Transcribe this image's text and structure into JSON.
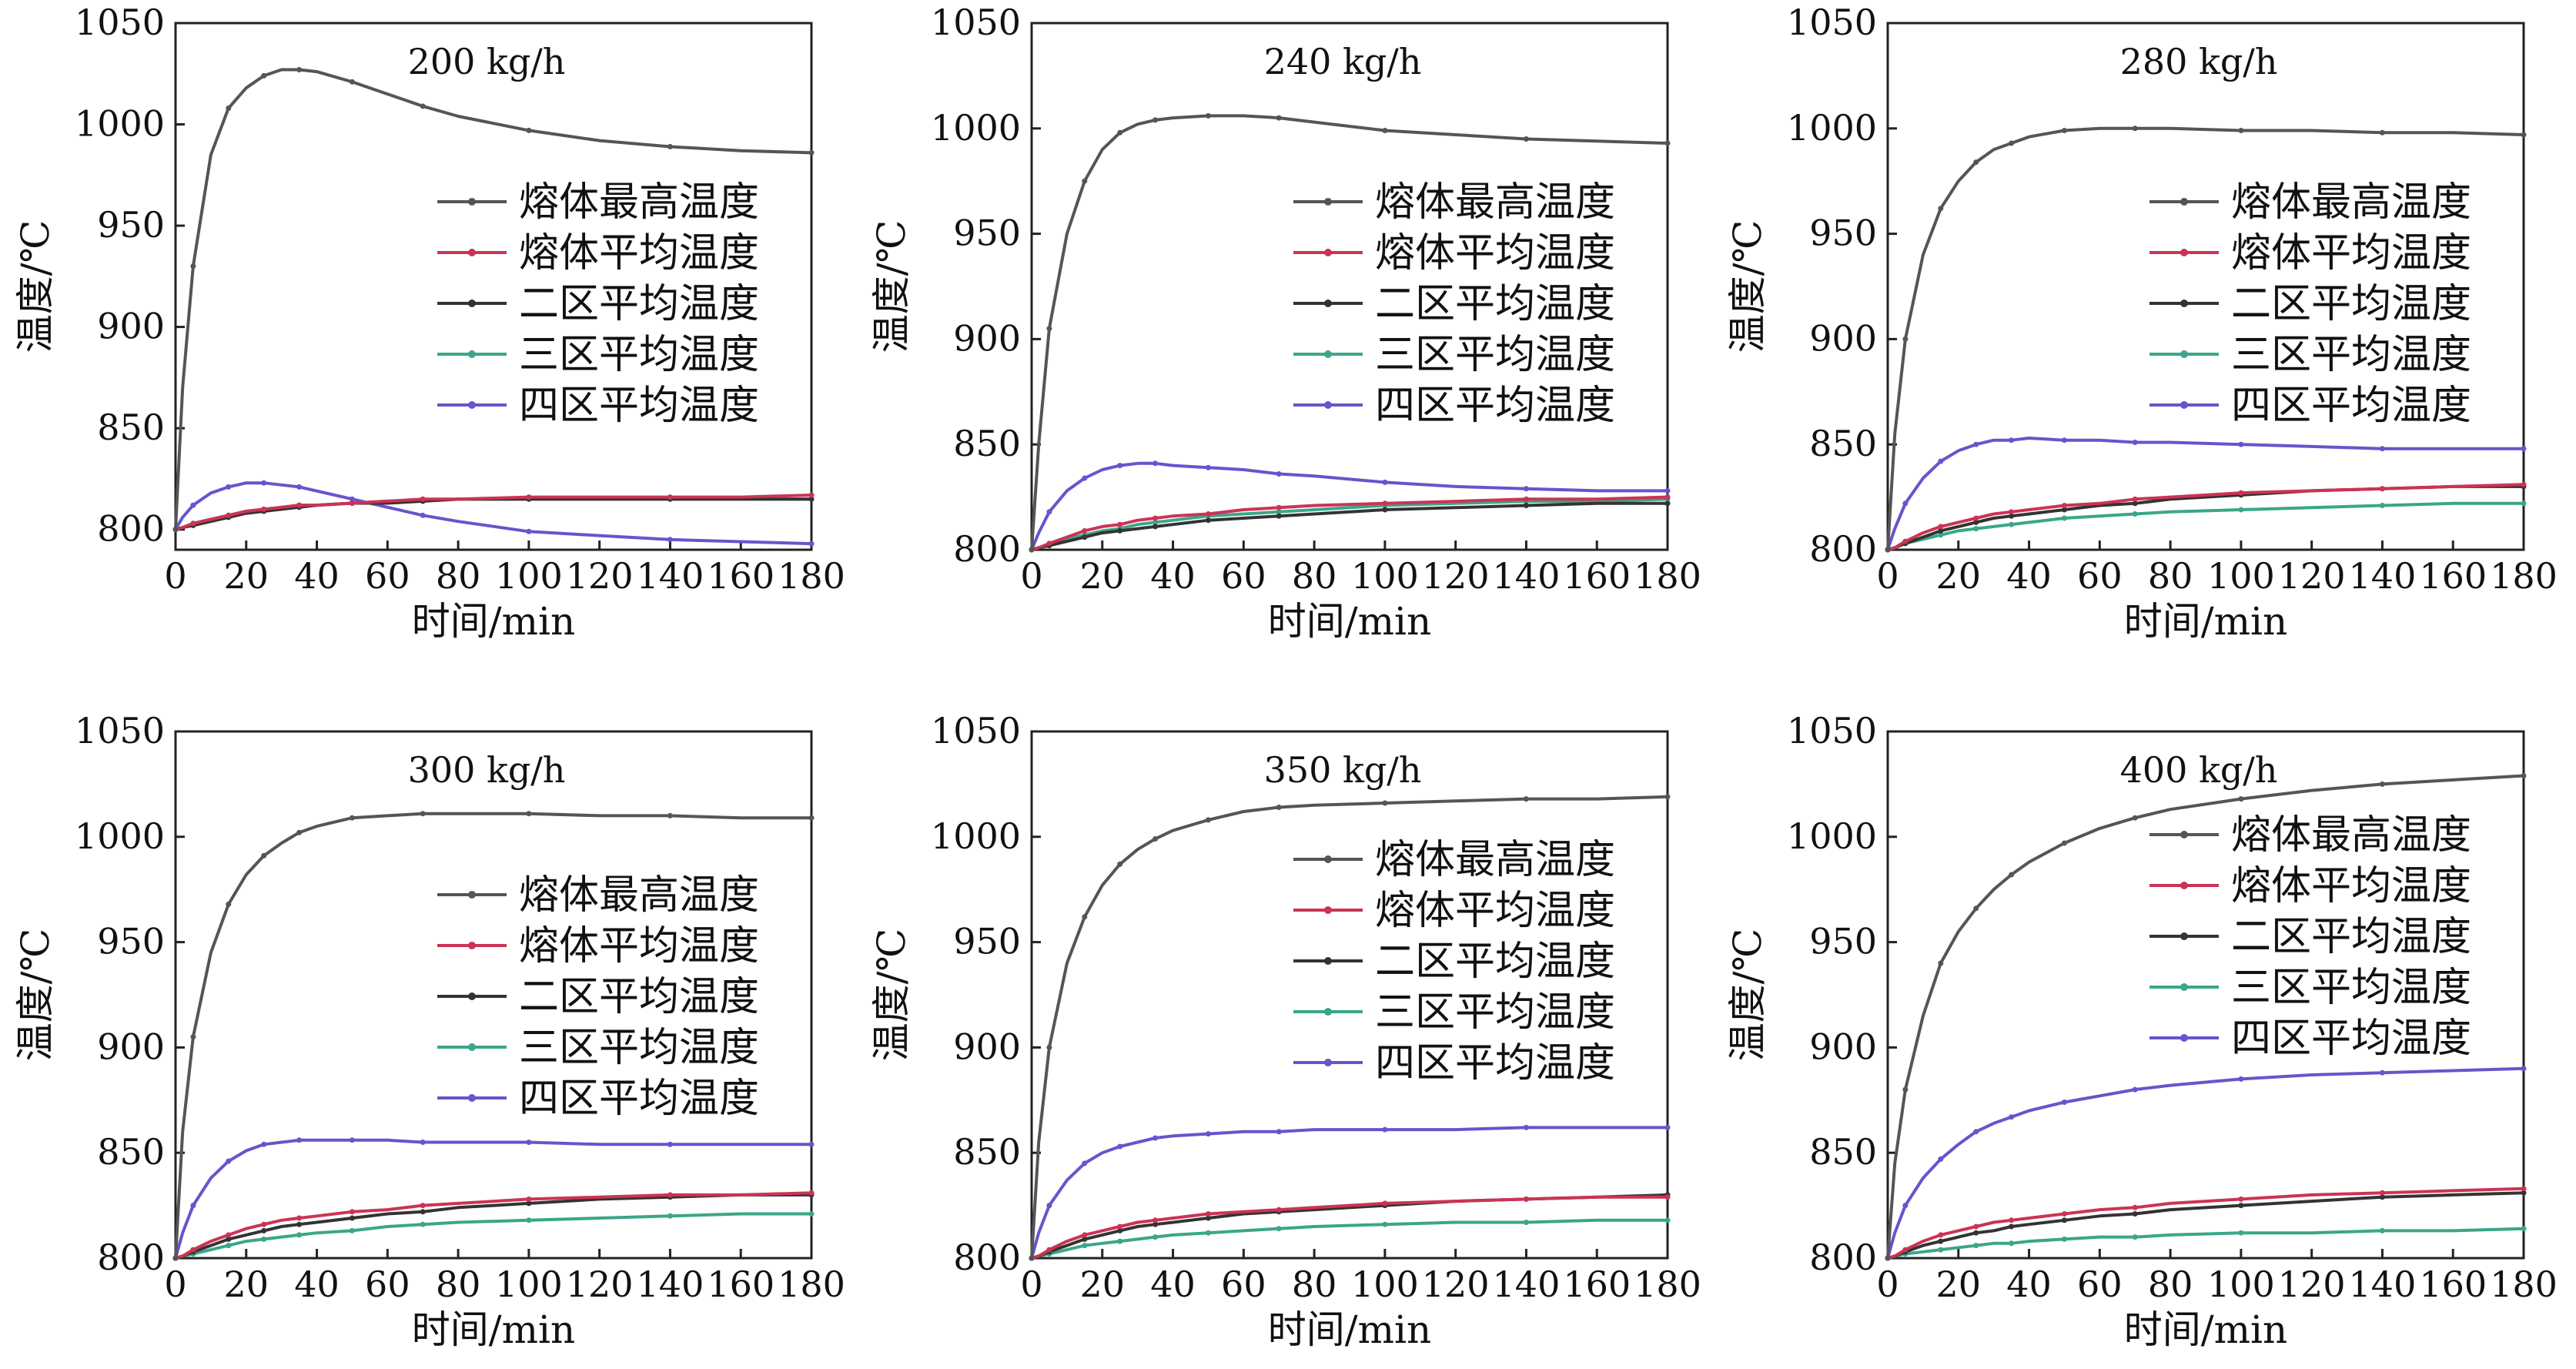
{
  "chart_data": [
    {
      "type": "line",
      "title": "200 kg/h",
      "xlabel": "时间/min",
      "ylabel": "温度/℃",
      "xlim": [
        0,
        180
      ],
      "ylim": [
        790,
        1050
      ],
      "xticks": [
        0,
        20,
        40,
        60,
        80,
        100,
        120,
        140,
        160,
        180
      ],
      "yticks": [
        800,
        850,
        900,
        950,
        1000,
        1050
      ],
      "legend_position": "right",
      "x": [
        0,
        2,
        5,
        10,
        15,
        20,
        25,
        30,
        35,
        40,
        50,
        60,
        70,
        80,
        100,
        120,
        140,
        160,
        180
      ],
      "series": [
        {
          "name": "熔体最高温度",
          "color": "#555555",
          "values": [
            800,
            870,
            930,
            985,
            1008,
            1018,
            1024,
            1027,
            1027,
            1026,
            1021,
            1015,
            1009,
            1004,
            997,
            992,
            989,
            987,
            986
          ]
        },
        {
          "name": "熔体平均温度",
          "color": "#cc3355",
          "values": [
            800,
            801,
            803,
            805,
            807,
            809,
            810,
            811,
            812,
            812,
            813,
            814,
            815,
            815,
            816,
            816,
            816,
            816,
            817
          ]
        },
        {
          "name": "二区平均温度",
          "color": "#333333",
          "values": [
            800,
            801,
            802,
            804,
            806,
            808,
            809,
            810,
            811,
            812,
            813,
            813,
            814,
            815,
            815,
            815,
            815,
            815,
            815
          ]
        },
        {
          "name": "三区平均温度",
          "color": "#3aa68a",
          "values": [
            800,
            801,
            803,
            805,
            807,
            809,
            810,
            811,
            812,
            812,
            813,
            814,
            814,
            815,
            815,
            815,
            815,
            815,
            815
          ]
        },
        {
          "name": "四区平均温度",
          "color": "#6655cc",
          "values": [
            800,
            806,
            812,
            818,
            821,
            823,
            823,
            822,
            821,
            819,
            815,
            811,
            807,
            804,
            799,
            797,
            795,
            794,
            793
          ]
        }
      ]
    },
    {
      "type": "line",
      "title": "240 kg/h",
      "xlabel": "时间/min",
      "ylabel": "温度/℃",
      "xlim": [
        0,
        180
      ],
      "ylim": [
        800,
        1050
      ],
      "xticks": [
        0,
        20,
        40,
        60,
        80,
        100,
        120,
        140,
        160,
        180
      ],
      "yticks": [
        800,
        850,
        900,
        950,
        1000,
        1050
      ],
      "legend_position": "right",
      "x": [
        0,
        2,
        5,
        10,
        15,
        20,
        25,
        30,
        35,
        40,
        50,
        60,
        70,
        80,
        100,
        120,
        140,
        160,
        180
      ],
      "series": [
        {
          "name": "熔体最高温度",
          "color": "#555555",
          "values": [
            800,
            850,
            905,
            950,
            975,
            990,
            998,
            1002,
            1004,
            1005,
            1006,
            1006,
            1005,
            1003,
            999,
            997,
            995,
            994,
            993
          ]
        },
        {
          "name": "熔体平均温度",
          "color": "#cc3355",
          "values": [
            800,
            801,
            803,
            806,
            809,
            811,
            812,
            814,
            815,
            816,
            817,
            819,
            820,
            821,
            822,
            823,
            824,
            824,
            825
          ]
        },
        {
          "name": "二区平均温度",
          "color": "#333333",
          "values": [
            800,
            801,
            802,
            804,
            806,
            808,
            809,
            810,
            811,
            812,
            814,
            815,
            816,
            817,
            819,
            820,
            821,
            822,
            822
          ]
        },
        {
          "name": "三区平均温度",
          "color": "#3aa68a",
          "values": [
            800,
            801,
            802,
            805,
            807,
            809,
            810,
            812,
            813,
            814,
            816,
            817,
            818,
            819,
            821,
            822,
            823,
            823,
            824
          ]
        },
        {
          "name": "四区平均温度",
          "color": "#6655cc",
          "values": [
            800,
            808,
            818,
            828,
            834,
            838,
            840,
            841,
            841,
            840,
            839,
            838,
            836,
            835,
            832,
            830,
            829,
            828,
            828
          ]
        }
      ]
    },
    {
      "type": "line",
      "title": "280 kg/h",
      "xlabel": "时间/min",
      "ylabel": "温度/℃",
      "xlim": [
        0,
        180
      ],
      "ylim": [
        800,
        1050
      ],
      "xticks": [
        0,
        20,
        40,
        60,
        80,
        100,
        120,
        140,
        160,
        180
      ],
      "yticks": [
        800,
        850,
        900,
        950,
        1000,
        1050
      ],
      "legend_position": "right",
      "x": [
        0,
        2,
        5,
        10,
        15,
        20,
        25,
        30,
        35,
        40,
        50,
        60,
        70,
        80,
        100,
        120,
        140,
        160,
        180
      ],
      "series": [
        {
          "name": "熔体最高温度",
          "color": "#555555",
          "values": [
            800,
            855,
            900,
            940,
            962,
            975,
            984,
            990,
            993,
            996,
            999,
            1000,
            1000,
            1000,
            999,
            999,
            998,
            998,
            997
          ]
        },
        {
          "name": "熔体平均温度",
          "color": "#cc3355",
          "values": [
            800,
            801,
            804,
            808,
            811,
            813,
            815,
            817,
            818,
            819,
            821,
            822,
            824,
            825,
            827,
            828,
            829,
            830,
            831
          ]
        },
        {
          "name": "二区平均温度",
          "color": "#333333",
          "values": [
            800,
            801,
            803,
            806,
            809,
            811,
            813,
            815,
            816,
            817,
            819,
            821,
            822,
            824,
            826,
            828,
            829,
            830,
            830
          ]
        },
        {
          "name": "三区平均温度",
          "color": "#3aa68a",
          "values": [
            800,
            801,
            803,
            805,
            807,
            809,
            810,
            811,
            812,
            813,
            815,
            816,
            817,
            818,
            819,
            820,
            821,
            822,
            822
          ]
        },
        {
          "name": "四区平均温度",
          "color": "#6655cc",
          "values": [
            800,
            810,
            822,
            834,
            842,
            847,
            850,
            852,
            852,
            853,
            852,
            852,
            851,
            851,
            850,
            849,
            848,
            848,
            848
          ]
        }
      ]
    },
    {
      "type": "line",
      "title": "300 kg/h",
      "xlabel": "时间/min",
      "ylabel": "温度/℃",
      "xlim": [
        0,
        180
      ],
      "ylim": [
        800,
        1050
      ],
      "xticks": [
        0,
        20,
        40,
        60,
        80,
        100,
        120,
        140,
        160,
        180
      ],
      "yticks": [
        800,
        850,
        900,
        950,
        1000,
        1050
      ],
      "legend_position": "right",
      "x": [
        0,
        2,
        5,
        10,
        15,
        20,
        25,
        30,
        35,
        40,
        50,
        60,
        70,
        80,
        100,
        120,
        140,
        160,
        180
      ],
      "series": [
        {
          "name": "熔体最高温度",
          "color": "#555555",
          "values": [
            800,
            860,
            905,
            945,
            968,
            982,
            991,
            997,
            1002,
            1005,
            1009,
            1010,
            1011,
            1011,
            1011,
            1010,
            1010,
            1009,
            1009
          ]
        },
        {
          "name": "熔体平均温度",
          "color": "#cc3355",
          "values": [
            800,
            801,
            804,
            808,
            811,
            814,
            816,
            818,
            819,
            820,
            822,
            823,
            825,
            826,
            828,
            829,
            830,
            830,
            831
          ]
        },
        {
          "name": "二区平均温度",
          "color": "#333333",
          "values": [
            800,
            801,
            803,
            806,
            809,
            811,
            813,
            815,
            816,
            817,
            819,
            821,
            822,
            824,
            826,
            828,
            829,
            830,
            830
          ]
        },
        {
          "name": "三区平均温度",
          "color": "#3aa68a",
          "values": [
            800,
            801,
            802,
            804,
            806,
            808,
            809,
            810,
            811,
            812,
            813,
            815,
            816,
            817,
            818,
            819,
            820,
            821,
            821
          ]
        },
        {
          "name": "四区平均温度",
          "color": "#6655cc",
          "values": [
            800,
            812,
            825,
            838,
            846,
            851,
            854,
            855,
            856,
            856,
            856,
            856,
            855,
            855,
            855,
            854,
            854,
            854,
            854
          ]
        }
      ]
    },
    {
      "type": "line",
      "title": "350 kg/h",
      "xlabel": "时间/min",
      "ylabel": "温度/℃",
      "xlim": [
        0,
        180
      ],
      "ylim": [
        800,
        1050
      ],
      "xticks": [
        0,
        20,
        40,
        60,
        80,
        100,
        120,
        140,
        160,
        180
      ],
      "yticks": [
        800,
        850,
        900,
        950,
        1000,
        1050
      ],
      "legend_position": "right",
      "x": [
        0,
        2,
        5,
        10,
        15,
        20,
        25,
        30,
        35,
        40,
        50,
        60,
        70,
        80,
        100,
        120,
        140,
        160,
        180
      ],
      "series": [
        {
          "name": "熔体最高温度",
          "color": "#555555",
          "values": [
            800,
            855,
            900,
            940,
            962,
            977,
            987,
            994,
            999,
            1003,
            1008,
            1012,
            1014,
            1015,
            1016,
            1017,
            1018,
            1018,
            1019
          ]
        },
        {
          "name": "熔体平均温度",
          "color": "#cc3355",
          "values": [
            800,
            801,
            804,
            808,
            811,
            813,
            815,
            817,
            818,
            819,
            821,
            822,
            823,
            824,
            826,
            827,
            828,
            829,
            829
          ]
        },
        {
          "name": "二区平均温度",
          "color": "#333333",
          "values": [
            800,
            801,
            803,
            806,
            809,
            811,
            813,
            815,
            816,
            817,
            819,
            821,
            822,
            823,
            825,
            827,
            828,
            829,
            830
          ]
        },
        {
          "name": "三区平均温度",
          "color": "#3aa68a",
          "values": [
            800,
            801,
            802,
            804,
            806,
            807,
            808,
            809,
            810,
            811,
            812,
            813,
            814,
            815,
            816,
            817,
            817,
            818,
            818
          ]
        },
        {
          "name": "四区平均温度",
          "color": "#6655cc",
          "values": [
            800,
            812,
            825,
            837,
            845,
            850,
            853,
            855,
            857,
            858,
            859,
            860,
            860,
            861,
            861,
            861,
            862,
            862,
            862
          ]
        }
      ]
    },
    {
      "type": "line",
      "title": "400 kg/h",
      "xlabel": "时间/min",
      "ylabel": "温度/℃",
      "xlim": [
        0,
        180
      ],
      "ylim": [
        800,
        1050
      ],
      "xticks": [
        0,
        20,
        40,
        60,
        80,
        100,
        120,
        140,
        160,
        180
      ],
      "yticks": [
        800,
        850,
        900,
        950,
        1000,
        1050
      ],
      "legend_position": "right",
      "x": [
        0,
        2,
        5,
        10,
        15,
        20,
        25,
        30,
        35,
        40,
        50,
        60,
        70,
        80,
        100,
        120,
        140,
        160,
        180
      ],
      "series": [
        {
          "name": "熔体最高温度",
          "color": "#555555",
          "values": [
            800,
            845,
            880,
            915,
            940,
            955,
            966,
            975,
            982,
            988,
            997,
            1004,
            1009,
            1013,
            1018,
            1022,
            1025,
            1027,
            1029
          ]
        },
        {
          "name": "熔体平均温度",
          "color": "#cc3355",
          "values": [
            800,
            801,
            804,
            808,
            811,
            813,
            815,
            817,
            818,
            819,
            821,
            823,
            824,
            826,
            828,
            830,
            831,
            832,
            833
          ]
        },
        {
          "name": "二区平均温度",
          "color": "#333333",
          "values": [
            800,
            801,
            803,
            806,
            808,
            810,
            812,
            813,
            815,
            816,
            818,
            820,
            821,
            823,
            825,
            827,
            829,
            830,
            831
          ]
        },
        {
          "name": "三区平均温度",
          "color": "#3aa68a",
          "values": [
            800,
            801,
            802,
            803,
            804,
            805,
            806,
            807,
            807,
            808,
            809,
            810,
            810,
            811,
            812,
            812,
            813,
            813,
            814
          ]
        },
        {
          "name": "四区平均温度",
          "color": "#6655cc",
          "values": [
            800,
            812,
            825,
            838,
            847,
            854,
            860,
            864,
            867,
            870,
            874,
            877,
            880,
            882,
            885,
            887,
            888,
            889,
            890
          ]
        }
      ]
    }
  ]
}
